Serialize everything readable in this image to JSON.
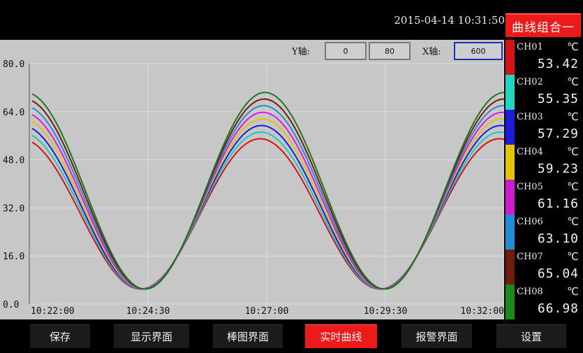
{
  "header": {
    "datetime": "2015-04-14 10:31:50",
    "combo_button": "曲线组合一"
  },
  "axis_controls": {
    "y_label": "Y轴:",
    "y_min": "0",
    "y_max": "80",
    "x_label": "X轴:",
    "x_span": "600"
  },
  "chart_data": {
    "type": "line",
    "ylim": [
      0,
      80
    ],
    "y_ticks": [
      "80.0",
      "64.0",
      "48.0",
      "32.0",
      "16.0",
      "0.0"
    ],
    "x_ticks": [
      "10:22:00",
      "10:24:30",
      "10:27:00",
      "10:29:30",
      "10:32:00"
    ],
    "grid": true,
    "series_model": "sinusoid",
    "series": [
      {
        "name": "CH01",
        "color": "#d41414",
        "peak": 55.0,
        "trough": 5.0,
        "phase": 4
      },
      {
        "name": "CH02",
        "color": "#21c4c4",
        "peak": 57.2,
        "trough": 5.0,
        "phase": 3
      },
      {
        "name": "CH03",
        "color": "#1820d6",
        "peak": 59.4,
        "trough": 5.0,
        "phase": 2
      },
      {
        "name": "CH04",
        "color": "#e0c10b",
        "peak": 61.6,
        "trough": 5.0,
        "phase": 1
      },
      {
        "name": "CH05",
        "color": "#e018e0",
        "peak": 63.8,
        "trough": 5.0,
        "phase": 0
      },
      {
        "name": "CH06",
        "color": "#1f8fd0",
        "peak": 66.0,
        "trough": 5.0,
        "phase": -1
      },
      {
        "name": "CH07",
        "color": "#7a1a0e",
        "peak": 68.2,
        "trough": 5.0,
        "phase": -2
      },
      {
        "name": "CH08",
        "color": "#1a7a1a",
        "peak": 70.4,
        "trough": 5.0,
        "phase": -3
      }
    ]
  },
  "channels": [
    {
      "name": "CH01",
      "unit": "℃",
      "value": "53.42",
      "color": "#d41414"
    },
    {
      "name": "CH02",
      "unit": "℃",
      "value": "55.35",
      "color": "#21d6c0"
    },
    {
      "name": "CH03",
      "unit": "℃",
      "value": "57.29",
      "color": "#1d1dd8"
    },
    {
      "name": "CH04",
      "unit": "℃",
      "value": "59.23",
      "color": "#e6c400"
    },
    {
      "name": "CH05",
      "unit": "℃",
      "value": "61.16",
      "color": "#d419d4"
    },
    {
      "name": "CH06",
      "unit": "℃",
      "value": "63.10",
      "color": "#1e8fd6"
    },
    {
      "name": "CH07",
      "unit": "℃",
      "value": "65.04",
      "color": "#6e1c0c"
    },
    {
      "name": "CH08",
      "unit": "℃",
      "value": "66.98",
      "color": "#1a8a1a"
    }
  ],
  "nav": [
    {
      "label": "保存",
      "active": false
    },
    {
      "label": "显示界面",
      "active": false
    },
    {
      "label": "棒图界面",
      "active": false
    },
    {
      "label": "实时曲线",
      "active": true
    },
    {
      "label": "报警界面",
      "active": false
    },
    {
      "label": "设置",
      "active": false
    }
  ]
}
